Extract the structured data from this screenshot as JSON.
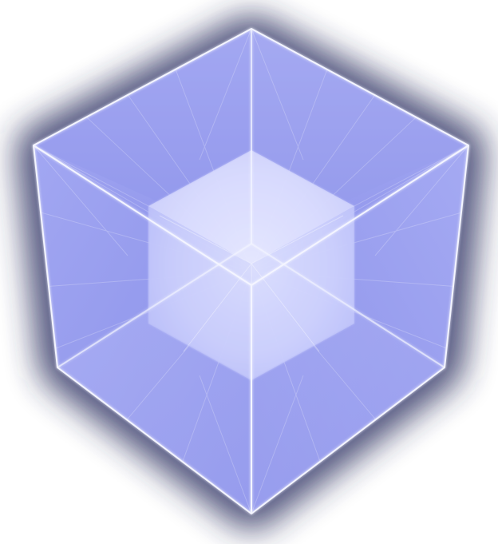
{
  "image": {
    "subject": "nested-cube-logo-icon",
    "colors": {
      "background": "#ffffff",
      "glow_outer": "#2c2f55",
      "glow_mid": "#6e72a6",
      "face_light": "#c9cbff",
      "face_mid": "#9aa0f0",
      "face_dark": "#7f86e6",
      "inner_cube": "#dfe2ff",
      "edge": "#f4f5ff"
    }
  }
}
